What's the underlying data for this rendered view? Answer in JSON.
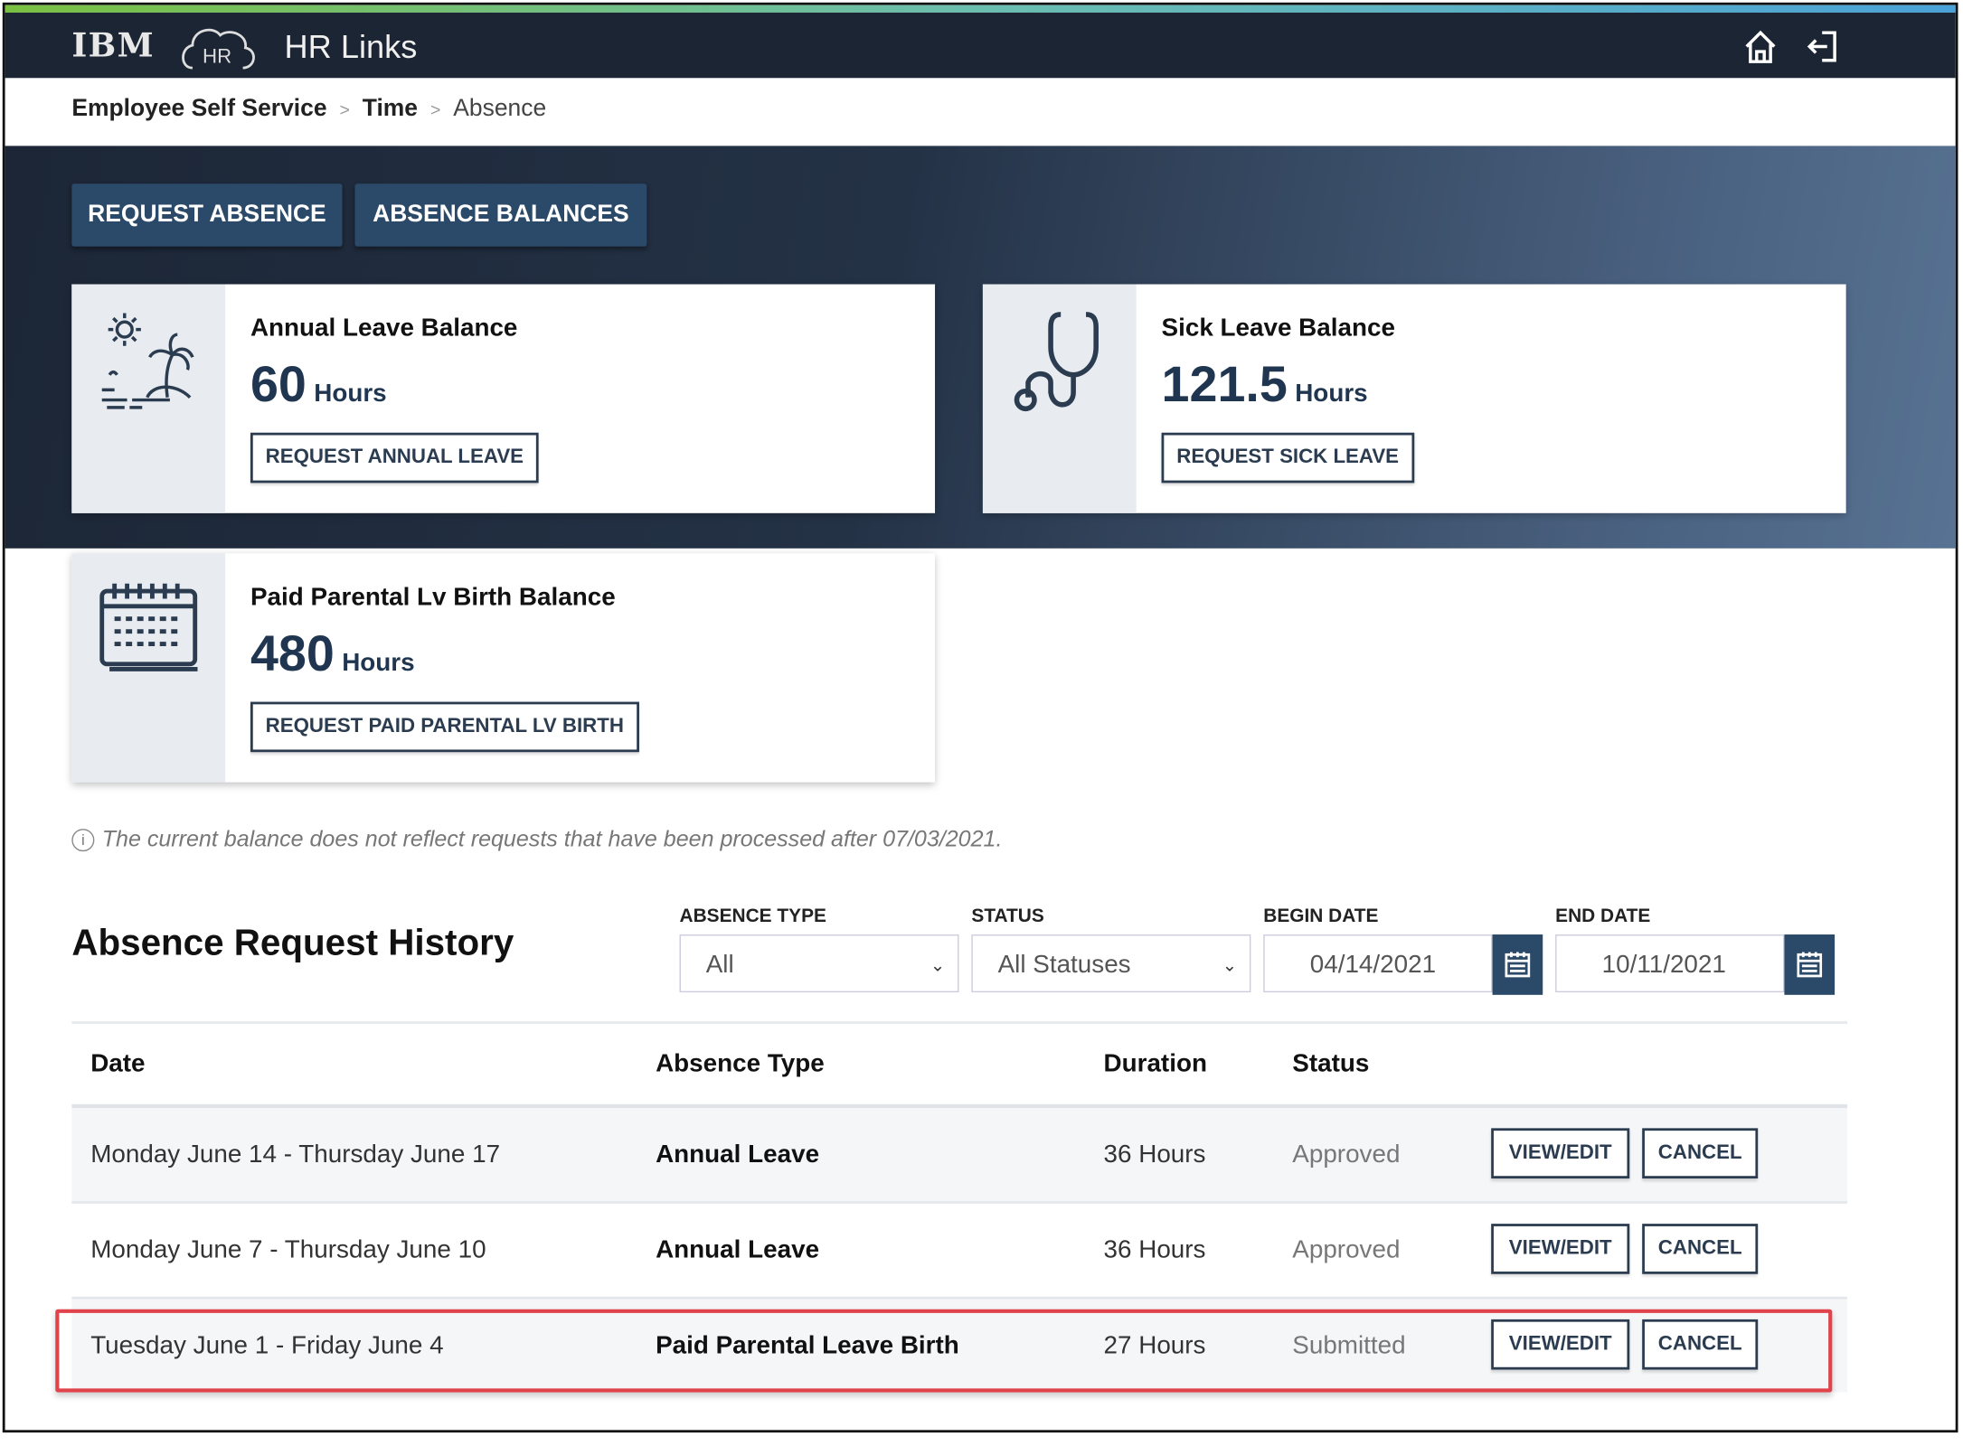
{
  "header": {
    "logo": "IBM",
    "hr_logo": "HR",
    "title": "HR Links",
    "icons": [
      "home-icon",
      "logout-icon"
    ]
  },
  "breadcrumb": [
    "Employee Self Service",
    "Time",
    "Absence"
  ],
  "tabs": {
    "request_absence": "REQUEST ABSENCE",
    "absence_balances": "ABSENCE BALANCES"
  },
  "cards": [
    {
      "icon": "beach-palm-icon",
      "title": "Annual Leave Balance",
      "value": "60",
      "unit": "Hours",
      "button": "REQUEST ANNUAL LEAVE"
    },
    {
      "icon": "stethoscope-icon",
      "title": "Sick Leave Balance",
      "value": "121.5",
      "unit": "Hours",
      "button": "REQUEST SICK LEAVE"
    },
    {
      "icon": "calendar-icon",
      "title": "Paid Parental Lv Birth Balance",
      "value": "480",
      "unit": "Hours",
      "button": "REQUEST PAID PARENTAL LV BIRTH"
    }
  ],
  "note": "The current balance does not reflect requests that have been processed after 07/03/2021.",
  "history": {
    "title": "Absence Request History",
    "filters": {
      "absence_type": {
        "label": "ABSENCE TYPE",
        "value": "All"
      },
      "status": {
        "label": "STATUS",
        "value": "All Statuses"
      },
      "begin_date": {
        "label": "BEGIN DATE",
        "value": "04/14/2021"
      },
      "end_date": {
        "label": "END DATE",
        "value": "10/11/2021"
      }
    },
    "columns": [
      "Date",
      "Absence Type",
      "Duration",
      "Status"
    ],
    "rows": [
      {
        "date": "Monday June 14 - Thursday June 17",
        "type": "Annual Leave",
        "duration": "36 Hours",
        "status": "Approved",
        "view": "VIEW/EDIT",
        "cancel": "CANCEL"
      },
      {
        "date": "Monday June 7 - Thursday June 10",
        "type": "Annual Leave",
        "duration": "36 Hours",
        "status": "Approved",
        "view": "VIEW/EDIT",
        "cancel": "CANCEL"
      },
      {
        "date": "Tuesday June 1 - Friday June 4",
        "type": "Paid Parental Leave Birth",
        "duration": "27 Hours",
        "status": "Submitted",
        "view": "VIEW/EDIT",
        "cancel": "CANCEL",
        "highlighted": true
      }
    ]
  },
  "colors": {
    "header": "#1c2533",
    "accent": "#2b4968",
    "highlight": "#e0434b"
  }
}
